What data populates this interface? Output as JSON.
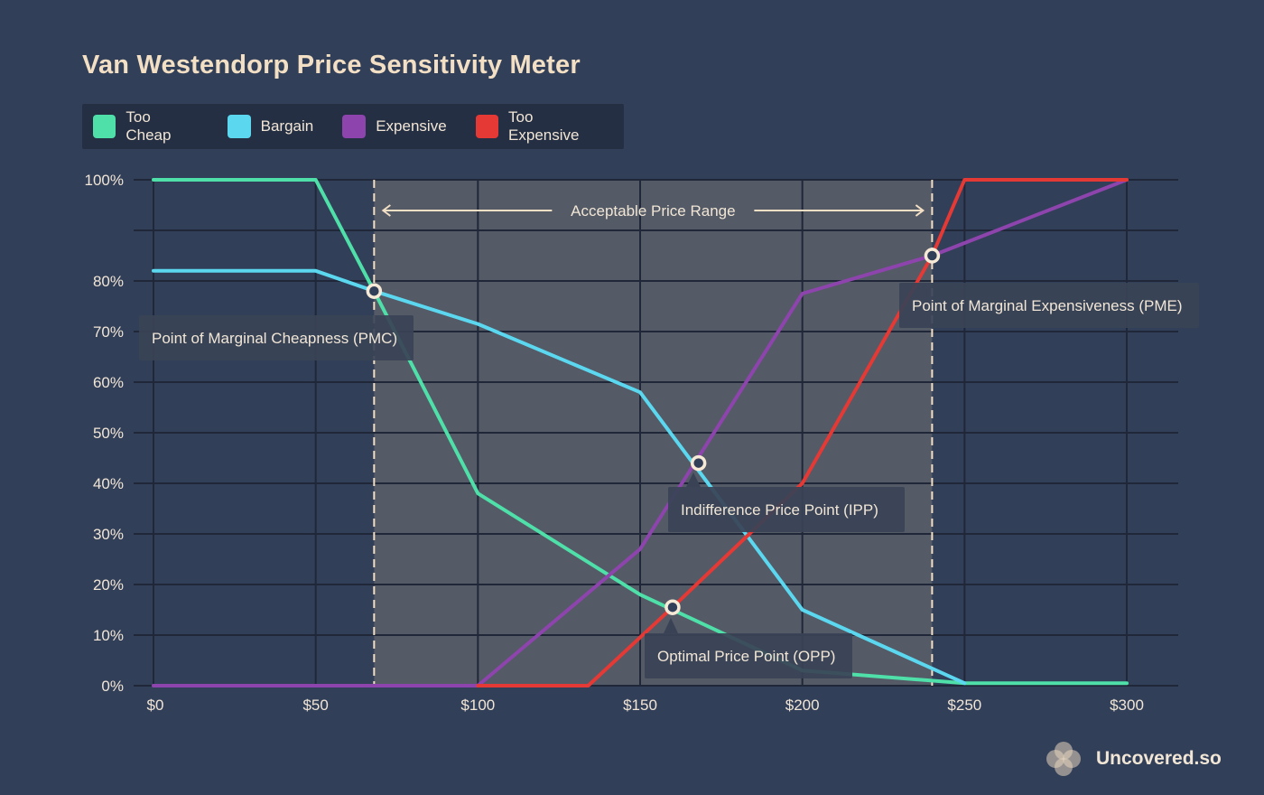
{
  "chart_data": {
    "type": "line",
    "title": "Van Westendorp Price Sensitivity Meter",
    "xlabel": "",
    "ylabel": "",
    "xlim": [
      0,
      300
    ],
    "ylim": [
      0,
      100
    ],
    "x_ticks": [
      0,
      50,
      100,
      150,
      200,
      250,
      300
    ],
    "x_tick_labels": [
      "$0",
      "$50",
      "$100",
      "$150",
      "$200",
      "$250",
      "$300"
    ],
    "y_ticks": [
      0,
      10,
      20,
      30,
      40,
      50,
      60,
      70,
      80,
      100
    ],
    "y_tick_labels": [
      "0%",
      "10%",
      "20%",
      "30%",
      "40%",
      "50%",
      "60%",
      "70%",
      "80%",
      "100%"
    ],
    "grid": true,
    "series": [
      {
        "name": "Too Cheap",
        "color": "#4fdfa8",
        "points": [
          [
            0,
            100
          ],
          [
            50,
            100
          ],
          [
            68,
            78
          ],
          [
            100,
            38
          ],
          [
            150,
            18
          ],
          [
            200,
            3
          ],
          [
            250,
            0.5
          ],
          [
            300,
            0.5
          ]
        ]
      },
      {
        "name": "Bargain",
        "color": "#5bd8ef",
        "points": [
          [
            0,
            82
          ],
          [
            50,
            82
          ],
          [
            68,
            78
          ],
          [
            100,
            71.5
          ],
          [
            150,
            58
          ],
          [
            200,
            15
          ],
          [
            250,
            0.5
          ]
        ]
      },
      {
        "name": "Expensive",
        "color": "#8e44ad",
        "points": [
          [
            0,
            0
          ],
          [
            100,
            0
          ],
          [
            150,
            27
          ],
          [
            200,
            77.5
          ],
          [
            240,
            85
          ],
          [
            250,
            87.5
          ],
          [
            300,
            100
          ]
        ]
      },
      {
        "name": "Too Expensive",
        "color": "#e53935",
        "points": [
          [
            100,
            0
          ],
          [
            134,
            0
          ],
          [
            160,
            15.5
          ],
          [
            200,
            40
          ],
          [
            240,
            85
          ],
          [
            250,
            100
          ],
          [
            300,
            100
          ]
        ]
      }
    ],
    "acceptable_range": {
      "label": "Acceptable Price Range",
      "from": 68,
      "to": 240
    },
    "points": [
      {
        "name": "Point of Marginal Cheapness (PMC)",
        "x": 68,
        "y": 78
      },
      {
        "name": "Indifference Price Point (IPP)",
        "x": 168,
        "y": 44
      },
      {
        "name": "Optimal Price Point (OPP)",
        "x": 160,
        "y": 15.5
      },
      {
        "name": "Point of Marginal Expensiveness (PME)",
        "x": 240,
        "y": 85
      }
    ]
  },
  "brand": {
    "name": "Uncovered.so"
  }
}
